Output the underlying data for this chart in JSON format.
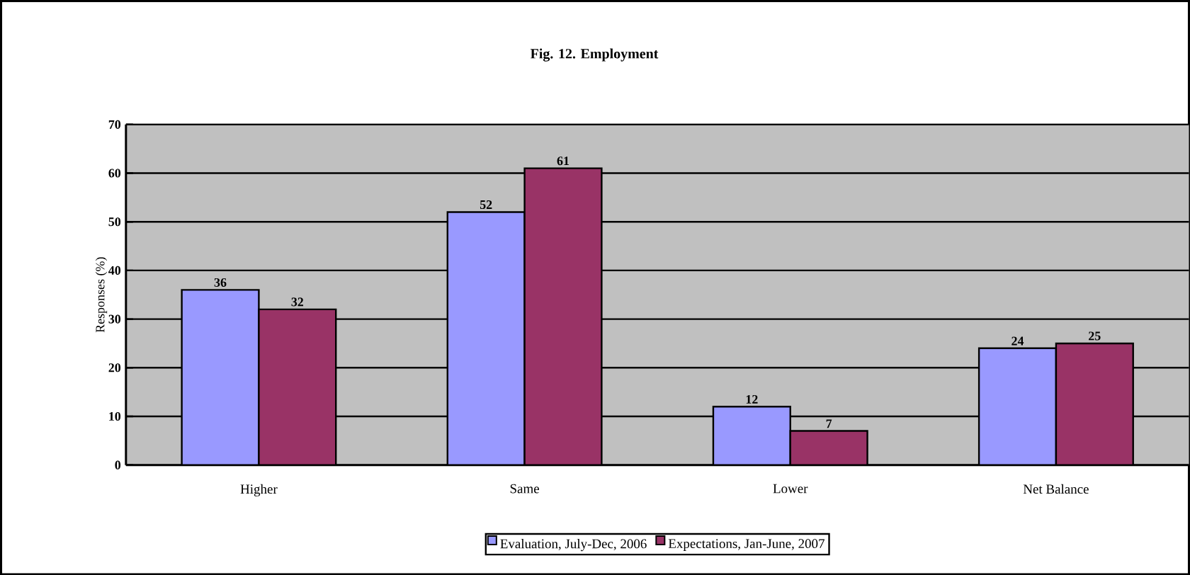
{
  "chart_data": {
    "type": "bar",
    "title": "Fig. 12.  Employment",
    "ylabel": "Responses (%)",
    "categories": [
      "Higher",
      "Same",
      "Lower",
      "Net Balance"
    ],
    "series": [
      {
        "name": "Evaluation, July-Dec, 2006",
        "color": "#9999ff",
        "values": [
          36,
          52,
          12,
          24
        ]
      },
      {
        "name": "Expectations, Jan-June, 2007",
        "color": "#993366",
        "values": [
          32,
          61,
          7,
          25
        ]
      }
    ],
    "ylim": [
      0,
      70
    ],
    "yticks": [
      0,
      10,
      20,
      30,
      40,
      50,
      60,
      70
    ],
    "grid": "y",
    "legend": "bottom",
    "data_labels": true
  }
}
